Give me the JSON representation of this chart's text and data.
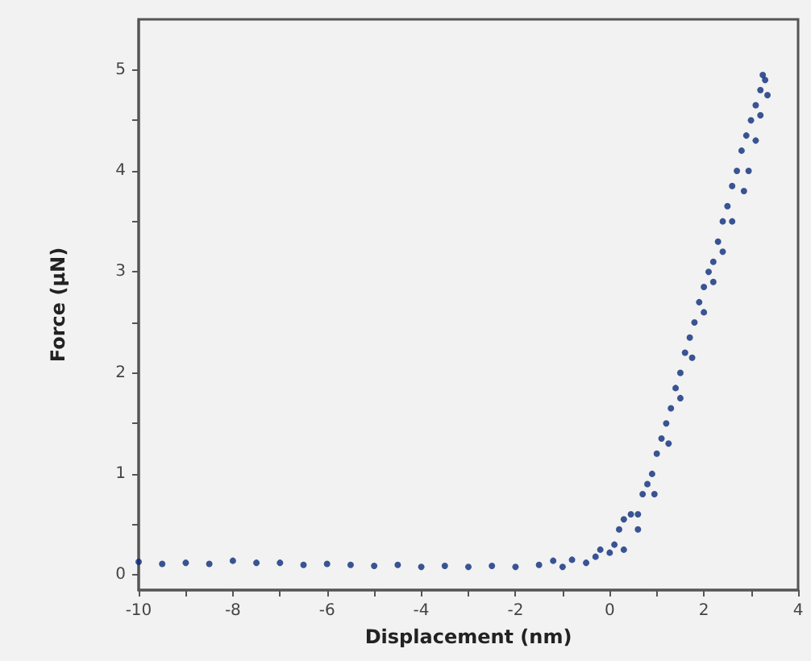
{
  "chart_data": {
    "type": "scatter",
    "xlabel": "Displacement (nm)",
    "ylabel": "Force (µN)",
    "marker": "circle",
    "grid": false,
    "xlim": [
      -10,
      4
    ],
    "ylim": [
      -0.15,
      5.5
    ],
    "xticks": [
      -10,
      {
        "value": -9,
        "label": null
      },
      -8,
      {
        "value": -7,
        "label": null
      },
      -6,
      {
        "value": -5,
        "label": null
      },
      -4,
      {
        "value": -3,
        "label": null
      },
      -2,
      {
        "value": -1,
        "label": null
      },
      0,
      {
        "value": 1,
        "label": null
      },
      2,
      {
        "value": 3,
        "label": null
      },
      4
    ],
    "yticks": [
      0,
      {
        "value": 0.5,
        "label": null
      },
      1,
      {
        "value": 1.5,
        "label": null
      },
      2,
      {
        "value": 2.5,
        "label": null
      },
      3,
      {
        "value": 3.5,
        "label": null
      },
      4,
      {
        "value": 4.5,
        "label": null
      },
      5
    ],
    "series": [
      {
        "color": "#0a2a7a",
        "x": [
          -10,
          -9.5,
          -9,
          -8.5,
          -8,
          -7.5,
          -7,
          -6.5,
          -6,
          -5.5,
          -5,
          -4.5,
          -4,
          -3.5,
          -3,
          -2.5,
          -2,
          -1.5,
          -1.2,
          -1,
          -0.8,
          -0.5,
          -0.3,
          -0.2,
          0,
          0.1,
          0.2,
          0.3,
          0.45,
          0.6,
          0.7,
          0.8,
          0.9,
          1.0,
          1.1,
          1.2,
          1.3,
          1.4,
          1.5,
          1.6,
          1.7,
          1.8,
          1.9,
          2.0,
          2.1,
          2.2,
          2.3,
          2.4,
          2.5,
          2.6,
          2.7,
          2.8,
          2.9,
          3.0,
          3.1,
          3.2,
          3.25,
          3.3,
          3.35,
          3.2,
          3.1,
          2.95,
          2.85,
          2.6,
          2.4,
          2.2,
          2.0,
          1.75,
          1.5,
          1.25,
          0.95,
          0.6,
          0.3
        ],
        "values": [
          0.13,
          0.11,
          0.12,
          0.11,
          0.14,
          0.12,
          0.12,
          0.1,
          0.11,
          0.1,
          0.09,
          0.1,
          0.08,
          0.09,
          0.08,
          0.09,
          0.08,
          0.1,
          0.14,
          0.08,
          0.15,
          0.12,
          0.18,
          0.25,
          0.22,
          0.3,
          0.45,
          0.55,
          0.6,
          0.6,
          0.8,
          0.9,
          1.0,
          1.2,
          1.35,
          1.5,
          1.65,
          1.85,
          2.0,
          2.2,
          2.35,
          2.5,
          2.7,
          2.85,
          3.0,
          3.1,
          3.3,
          3.5,
          3.65,
          3.85,
          4.0,
          4.2,
          4.35,
          4.5,
          4.65,
          4.8,
          4.95,
          4.9,
          4.75,
          4.55,
          4.3,
          4.0,
          3.8,
          3.5,
          3.2,
          2.9,
          2.6,
          2.15,
          1.75,
          1.3,
          0.8,
          0.45,
          0.25
        ]
      }
    ]
  }
}
